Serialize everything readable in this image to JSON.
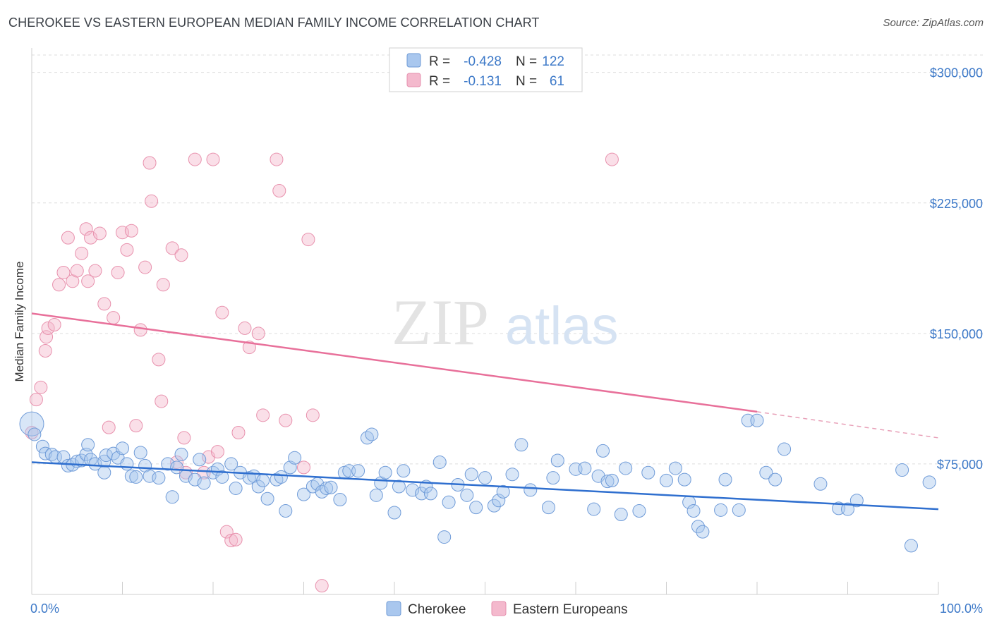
{
  "title": "CHEROKEE VS EASTERN EUROPEAN MEDIAN FAMILY INCOME CORRELATION CHART",
  "source": "Source: ZipAtlas.com",
  "watermark": {
    "zip": "ZIP",
    "atlas": "atlas"
  },
  "colors": {
    "blue": "#3d79c8",
    "blue_fill": "#a9c7ee",
    "pink": "#e8709a",
    "pink_fill": "#f4b9cd"
  },
  "legend": {
    "r_label": "R =",
    "n_label": "N =",
    "rows": [
      {
        "r": "-0.428",
        "n": "122"
      },
      {
        "r": "-0.131",
        "n": "61"
      }
    ]
  },
  "chart_data": {
    "type": "scatter",
    "title": "CHEROKEE VS EASTERN EUROPEAN MEDIAN FAMILY INCOME CORRELATION CHART",
    "xlabel": "",
    "ylabel": "Median Family Income",
    "xlim": [
      0,
      100
    ],
    "ylim": [
      0,
      310000
    ],
    "x_tick_labels": [
      "0.0%",
      "100.0%"
    ],
    "y_ticks": [
      75000,
      150000,
      225000,
      300000
    ],
    "y_tick_labels": [
      "$75,000",
      "$150,000",
      "$225,000",
      "$300,000"
    ],
    "grid": true,
    "legend_position": "top-center",
    "series": [
      {
        "name": "Cherokee",
        "color": "#3d79c8",
        "trend": {
          "x": [
            0,
            100
          ],
          "y": [
            76000,
            49000
          ]
        },
        "points": [
          [
            0,
            98000
          ],
          [
            0.3,
            92000
          ],
          [
            1.2,
            85000
          ],
          [
            1.5,
            81000
          ],
          [
            2.2,
            80500
          ],
          [
            2.6,
            79000
          ],
          [
            3.5,
            79000
          ],
          [
            4,
            74000
          ],
          [
            4.5,
            74500
          ],
          [
            5,
            76500
          ],
          [
            5.5,
            77000
          ],
          [
            6,
            80500
          ],
          [
            6.2,
            86000
          ],
          [
            6.5,
            77500
          ],
          [
            7,
            75000
          ],
          [
            8,
            76500
          ],
          [
            8,
            70000
          ],
          [
            8.2,
            80000
          ],
          [
            9,
            81000
          ],
          [
            9.5,
            78500
          ],
          [
            10,
            84000
          ],
          [
            10.5,
            75000
          ],
          [
            11,
            68000
          ],
          [
            11.5,
            67500
          ],
          [
            12,
            81500
          ],
          [
            12.5,
            74000
          ],
          [
            13,
            68000
          ],
          [
            14,
            67000
          ],
          [
            15,
            75000
          ],
          [
            15.5,
            56000
          ],
          [
            16,
            73000
          ],
          [
            16.5,
            80500
          ],
          [
            17,
            68000
          ],
          [
            18,
            66000
          ],
          [
            18.5,
            77500
          ],
          [
            19,
            64000
          ],
          [
            20,
            70000
          ],
          [
            20.5,
            72000
          ],
          [
            21,
            67500
          ],
          [
            22,
            75000
          ],
          [
            22.5,
            61000
          ],
          [
            23,
            70000
          ],
          [
            24,
            67000
          ],
          [
            24.5,
            68000
          ],
          [
            25,
            62000
          ],
          [
            25.5,
            65500
          ],
          [
            26,
            55000
          ],
          [
            27,
            66000
          ],
          [
            27.5,
            67500
          ],
          [
            28,
            48000
          ],
          [
            28.5,
            73000
          ],
          [
            29,
            78500
          ],
          [
            30,
            57500
          ],
          [
            31,
            62000
          ],
          [
            31.5,
            63500
          ],
          [
            32,
            59000
          ],
          [
            32.5,
            61000
          ],
          [
            33,
            61500
          ],
          [
            34,
            54500
          ],
          [
            34.5,
            70000
          ],
          [
            35,
            71000
          ],
          [
            36,
            71000
          ],
          [
            37,
            90000
          ],
          [
            37.5,
            92000
          ],
          [
            38,
            57000
          ],
          [
            38.5,
            64000
          ],
          [
            39,
            70000
          ],
          [
            40,
            47000
          ],
          [
            40.5,
            62000
          ],
          [
            41,
            71000
          ],
          [
            42,
            60000
          ],
          [
            43,
            58000
          ],
          [
            43.5,
            62000
          ],
          [
            44,
            58000
          ],
          [
            45,
            76000
          ],
          [
            45.5,
            33000
          ],
          [
            46,
            53000
          ],
          [
            47,
            63000
          ],
          [
            48,
            57000
          ],
          [
            48.5,
            69000
          ],
          [
            49,
            50000
          ],
          [
            50,
            67000
          ],
          [
            51,
            51000
          ],
          [
            51.5,
            54000
          ],
          [
            52,
            59000
          ],
          [
            53,
            69000
          ],
          [
            54,
            86000
          ],
          [
            55,
            60000
          ],
          [
            57,
            50000
          ],
          [
            57.5,
            67000
          ],
          [
            58,
            77000
          ],
          [
            60,
            72000
          ],
          [
            61,
            72500
          ],
          [
            62,
            49000
          ],
          [
            62.5,
            68000
          ],
          [
            63,
            82500
          ],
          [
            63.5,
            65000
          ],
          [
            64,
            65500
          ],
          [
            65,
            46000
          ],
          [
            65.5,
            72500
          ],
          [
            67,
            48000
          ],
          [
            68,
            70000
          ],
          [
            70,
            65500
          ],
          [
            71,
            72500
          ],
          [
            72,
            66000
          ],
          [
            72.5,
            53000
          ],
          [
            73,
            48000
          ],
          [
            73.5,
            39000
          ],
          [
            74,
            36000
          ],
          [
            76,
            48500
          ],
          [
            76.5,
            66000
          ],
          [
            78,
            48500
          ],
          [
            79,
            100000
          ],
          [
            80,
            100000
          ],
          [
            81,
            70000
          ],
          [
            82,
            66000
          ],
          [
            83,
            83500
          ],
          [
            87,
            63500
          ],
          [
            89,
            49500
          ],
          [
            90,
            49000
          ],
          [
            91,
            54000
          ],
          [
            96,
            71500
          ],
          [
            97,
            28000
          ],
          [
            99,
            64500
          ]
        ]
      },
      {
        "name": "Eastern Europeans",
        "color": "#e8709a",
        "trend": {
          "x": [
            0,
            80
          ],
          "y": [
            161500,
            105000
          ],
          "dashed_to": {
            "x": 100,
            "y": 90000
          }
        },
        "points": [
          [
            0,
            93000
          ],
          [
            0.5,
            112000
          ],
          [
            1,
            119000
          ],
          [
            1.5,
            140000
          ],
          [
            1.6,
            148000
          ],
          [
            1.8,
            153000
          ],
          [
            2.5,
            155000
          ],
          [
            3,
            178000
          ],
          [
            3.5,
            185000
          ],
          [
            4,
            205000
          ],
          [
            4.5,
            180000
          ],
          [
            5,
            186000
          ],
          [
            5.5,
            196000
          ],
          [
            6,
            210000
          ],
          [
            6.2,
            180000
          ],
          [
            6.5,
            205000
          ],
          [
            7,
            186000
          ],
          [
            7.5,
            207500
          ],
          [
            8,
            167000
          ],
          [
            8.5,
            96000
          ],
          [
            9,
            159000
          ],
          [
            9.5,
            185000
          ],
          [
            10,
            208000
          ],
          [
            10.5,
            198000
          ],
          [
            11,
            209000
          ],
          [
            11.5,
            97000
          ],
          [
            12,
            152000
          ],
          [
            12.5,
            188000
          ],
          [
            13,
            248000
          ],
          [
            13.2,
            226000
          ],
          [
            14,
            135000
          ],
          [
            14.3,
            111000
          ],
          [
            14.5,
            178000
          ],
          [
            15.5,
            199000
          ],
          [
            16,
            76000
          ],
          [
            16.5,
            195000
          ],
          [
            16.8,
            90000
          ],
          [
            17,
            70000
          ],
          [
            18,
            250000
          ],
          [
            19,
            70000
          ],
          [
            19.5,
            79000
          ],
          [
            20,
            250000
          ],
          [
            20.5,
            82000
          ],
          [
            21,
            162000
          ],
          [
            21.5,
            36000
          ],
          [
            22,
            31000
          ],
          [
            22.5,
            31500
          ],
          [
            22.8,
            93000
          ],
          [
            23.5,
            153000
          ],
          [
            24,
            142000
          ],
          [
            25,
            150000
          ],
          [
            25.5,
            103000
          ],
          [
            27,
            250000
          ],
          [
            27.3,
            232000
          ],
          [
            28,
            100000
          ],
          [
            30,
            73000
          ],
          [
            30.5,
            204000
          ],
          [
            31,
            103000
          ],
          [
            32,
            5000
          ],
          [
            64,
            250000
          ]
        ]
      }
    ]
  }
}
